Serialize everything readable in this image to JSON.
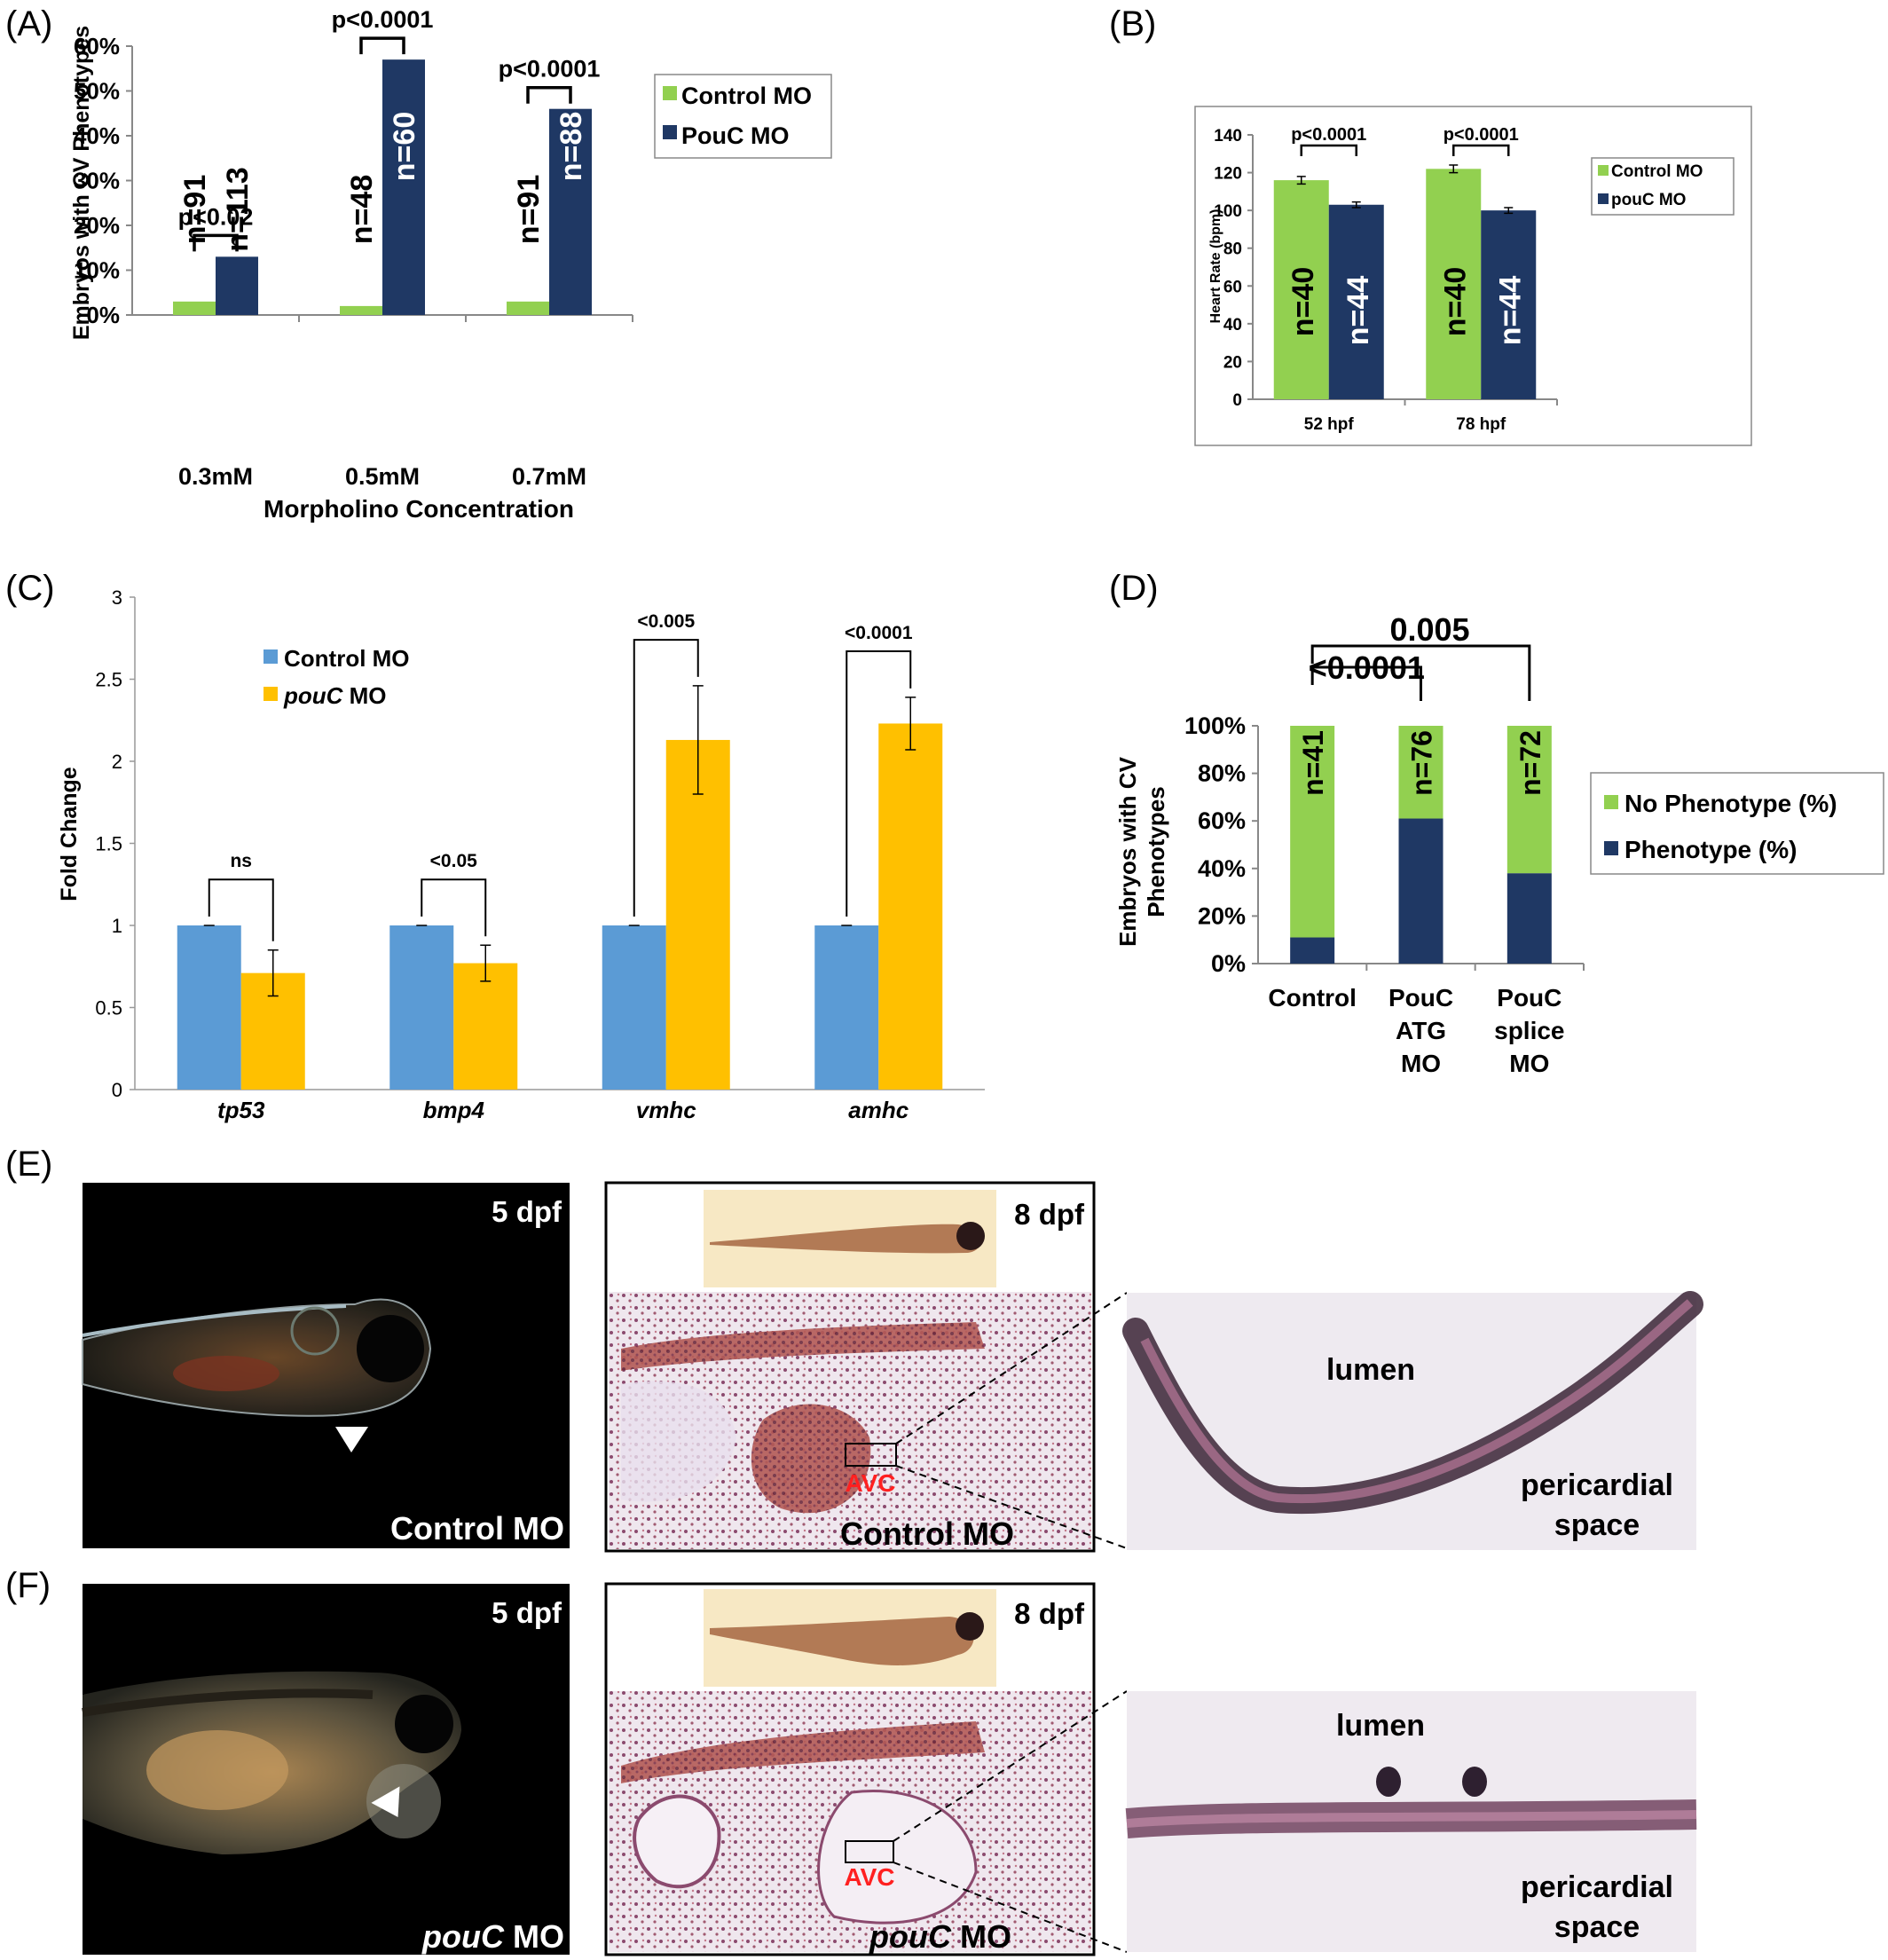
{
  "colors": {
    "green": "#92d050",
    "navy": "#1f3864",
    "blue": "#5b9bd5",
    "gold": "#ffc000",
    "red": "#ff2020"
  },
  "panels": {
    "A": {
      "letter": "(A)"
    },
    "B": {
      "letter": "(B)"
    },
    "C": {
      "letter": "(C)"
    },
    "D": {
      "letter": "(D)"
    },
    "E": {
      "letter": "(E)",
      "stage_left": "5 dpf",
      "stage_mid": "8 dpf",
      "left_caption": "Control MO",
      "mid_caption": "Control MO",
      "avc": "AVC",
      "lumen": "lumen",
      "space_1": "pericardial",
      "space_2": "space"
    },
    "F": {
      "letter": "(F)",
      "stage_left": "5 dpf",
      "stage_mid": "8 dpf",
      "left_caption_italic": "pouC",
      "left_caption_rest": " MO",
      "mid_caption_italic": "pouC",
      "mid_caption_rest": " MO",
      "avc": "AVC",
      "lumen": "lumen",
      "space_1": "pericardial",
      "space_2": "space"
    }
  },
  "chart_data": [
    {
      "panel": "A",
      "type": "bar",
      "categories": [
        "0.3mM",
        "0.5mM",
        "0.7mM"
      ],
      "series": [
        {
          "name": "Control MO",
          "values": [
            3,
            2,
            3
          ],
          "n": [
            "n=91",
            "n=48",
            "n=91"
          ]
        },
        {
          "name": "PouC MO",
          "values": [
            13,
            57,
            46
          ],
          "n": [
            "n=113",
            "n=60",
            "n=88"
          ]
        }
      ],
      "pvalues": [
        "p<0.02",
        "p<0.0001",
        "p<0.0001"
      ],
      "xlabel": "Morpholino Concentration",
      "ylabel": "Embryos with CV Phenotypes",
      "ylim": [
        0,
        60
      ],
      "yticks": [
        "0%",
        "10%",
        "20%",
        "30%",
        "40%",
        "50%",
        "60%"
      ],
      "legend": "top-right"
    },
    {
      "panel": "B",
      "type": "bar",
      "categories": [
        "52 hpf",
        "78 hpf"
      ],
      "series": [
        {
          "name": "Control MO",
          "values": [
            116,
            122
          ],
          "err": [
            2,
            2
          ],
          "n": [
            "n=40",
            "n=40"
          ]
        },
        {
          "name": "pouC MO",
          "values": [
            103,
            100
          ],
          "err": [
            1.5,
            1.5
          ],
          "n": [
            "n=44",
            "n=44"
          ]
        }
      ],
      "pvalues": [
        "p<0.0001",
        "p<0.0001"
      ],
      "ylabel": "Heart Rate (bpm)",
      "ylim": [
        0,
        140
      ],
      "yticks": [
        "0",
        "20",
        "40",
        "60",
        "80",
        "100",
        "120",
        "140"
      ],
      "legend": "right"
    },
    {
      "panel": "C",
      "type": "bar",
      "categories": [
        "tp53",
        "bmp4",
        "vmhc",
        "amhc"
      ],
      "series": [
        {
          "name": "Control MO",
          "values": [
            1.0,
            1.0,
            1.0,
            1.0
          ],
          "err": [
            0,
            0,
            0,
            0
          ]
        },
        {
          "name_italic": "pouC",
          "name_rest": " MO",
          "values": [
            0.71,
            0.77,
            2.13,
            2.23
          ],
          "err": [
            0.14,
            0.11,
            0.33,
            0.16
          ]
        }
      ],
      "pvalues": [
        "ns",
        "<0.05",
        "<0.005",
        "<0.0001"
      ],
      "ylabel": "Fold Change",
      "ylim": [
        0,
        3
      ],
      "yticks": [
        "0",
        "0.5",
        "1",
        "1.5",
        "2",
        "2.5",
        "3"
      ],
      "legend": "top-left"
    },
    {
      "panel": "D",
      "type": "bar",
      "stacked": true,
      "categories": [
        [
          "Control"
        ],
        [
          "PouC",
          "ATG",
          "MO"
        ],
        [
          "PouC",
          "splice",
          "MO"
        ]
      ],
      "series": [
        {
          "name": "No Phenotype (%)",
          "values": [
            89,
            39,
            62
          ]
        },
        {
          "name": "Phenotype (%)",
          "values": [
            11,
            61,
            38
          ]
        }
      ],
      "n": [
        "n=41",
        "n=76",
        "n=72"
      ],
      "pvalues": [
        "<0.0001",
        "0.005"
      ],
      "ylabel_1": "Embryos with CV",
      "ylabel_2": "Phenotypes",
      "ylim": [
        0,
        100
      ],
      "yticks": [
        "0%",
        "20%",
        "40%",
        "60%",
        "80%",
        "100%"
      ],
      "legend": "right"
    }
  ]
}
